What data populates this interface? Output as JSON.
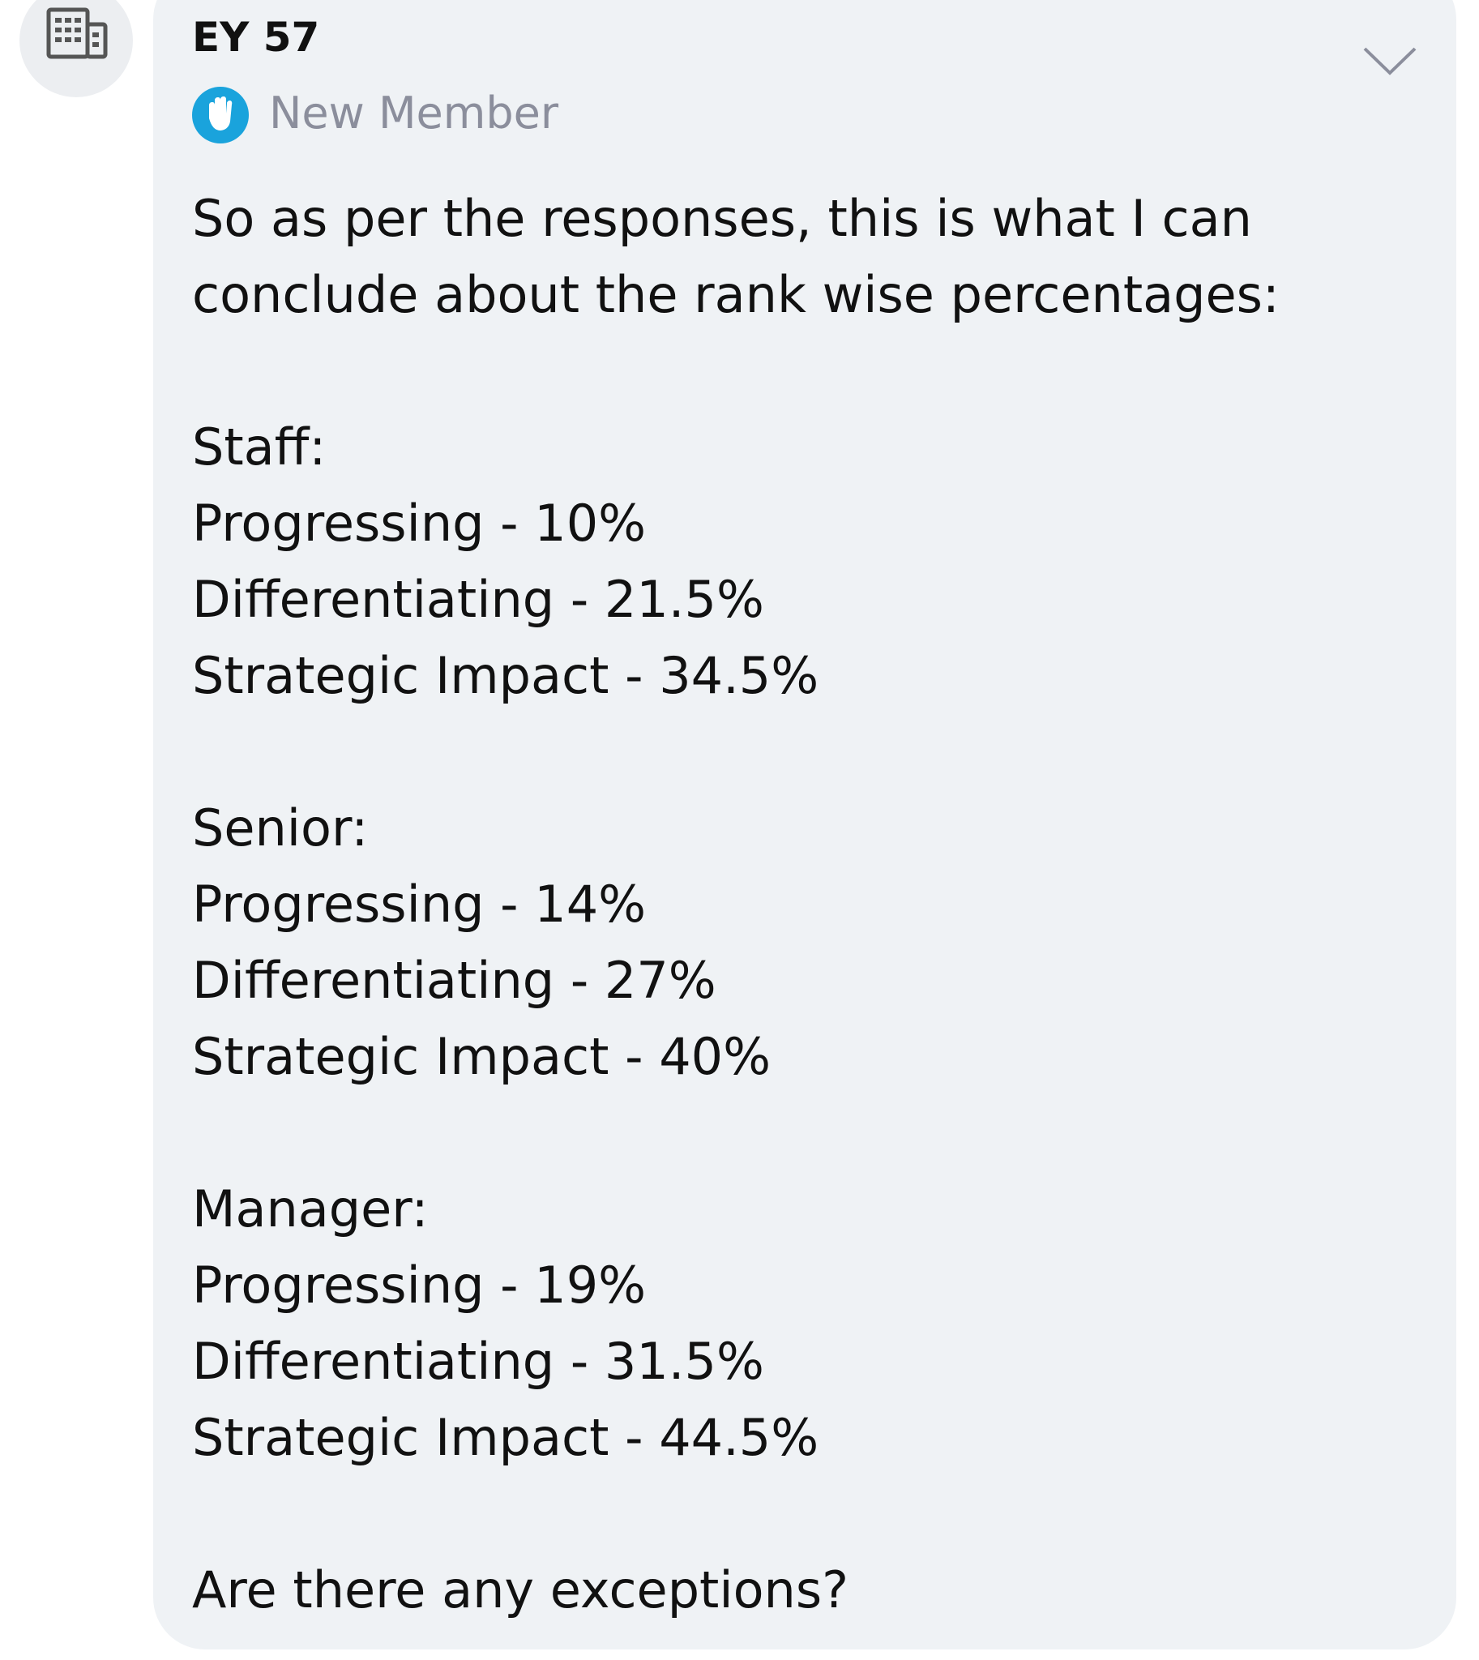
{
  "post": {
    "author": "EY 57",
    "badge": "New Member",
    "body": {
      "intro": [
        "So as per the responses, this is what I can",
        "conclude about the rank wise percentages:"
      ],
      "sections": [
        {
          "heading": "Staff:",
          "items": [
            "Progressing - 10%",
            "Differentiating - 21.5%",
            "Strategic Impact - 34.5%"
          ]
        },
        {
          "heading": "Senior:",
          "items": [
            "Progressing - 14%",
            "Differentiating - 27%",
            "Strategic Impact - 40%"
          ]
        },
        {
          "heading": "Manager:",
          "items": [
            "Progressing - 19%",
            "Differentiating - 31.5%",
            "Strategic Impact - 44.5%"
          ]
        }
      ],
      "closing": "Are there any exceptions?"
    }
  }
}
